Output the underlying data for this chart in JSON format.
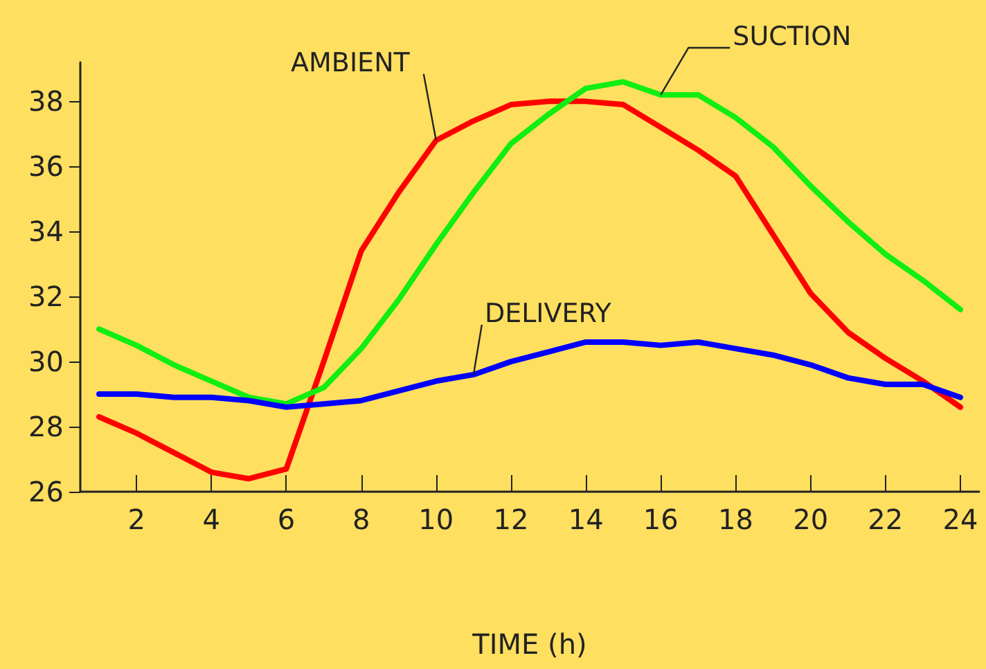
{
  "chart_data": {
    "type": "line",
    "xlabel": "TIME (h)",
    "x": [
      1,
      2,
      3,
      4,
      5,
      6,
      7,
      8,
      9,
      10,
      11,
      12,
      13,
      14,
      15,
      16,
      17,
      18,
      19,
      20,
      21,
      22,
      23,
      24
    ],
    "series": [
      {
        "name": "AMBIENT",
        "color": "#ff0000",
        "values": [
          28.3,
          27.8,
          27.2,
          26.6,
          26.4,
          26.7,
          30.0,
          33.4,
          35.2,
          36.8,
          37.4,
          37.9,
          38.0,
          38.0,
          37.9,
          37.2,
          36.5,
          35.7,
          33.9,
          32.1,
          30.9,
          30.1,
          29.4,
          28.6
        ]
      },
      {
        "name": "SUCTION",
        "color": "#11ee11",
        "values": [
          31.0,
          30.5,
          29.9,
          29.4,
          28.9,
          28.7,
          29.2,
          30.4,
          31.9,
          33.6,
          35.2,
          36.7,
          37.6,
          38.4,
          38.6,
          38.2,
          38.2,
          37.5,
          36.6,
          35.4,
          34.3,
          33.3,
          32.5,
          31.6
        ]
      },
      {
        "name": "DELIVERY",
        "color": "#0000ff",
        "values": [
          29.0,
          29.0,
          28.9,
          28.9,
          28.8,
          28.6,
          28.7,
          28.8,
          29.1,
          29.4,
          29.6,
          30.0,
          30.3,
          30.6,
          30.6,
          30.5,
          30.6,
          30.4,
          30.2,
          29.9,
          29.5,
          29.3,
          29.3,
          28.9
        ]
      }
    ],
    "xlim": [
      0.5,
      24.5
    ],
    "xticks": [
      2,
      4,
      6,
      8,
      10,
      12,
      14,
      16,
      18,
      20,
      22,
      24
    ],
    "ylim": [
      26,
      39.2
    ],
    "yticks": [
      26,
      28,
      30,
      32,
      34,
      36,
      38
    ],
    "grid": false,
    "legend": false,
    "marker": "none",
    "line_style": "solid"
  }
}
